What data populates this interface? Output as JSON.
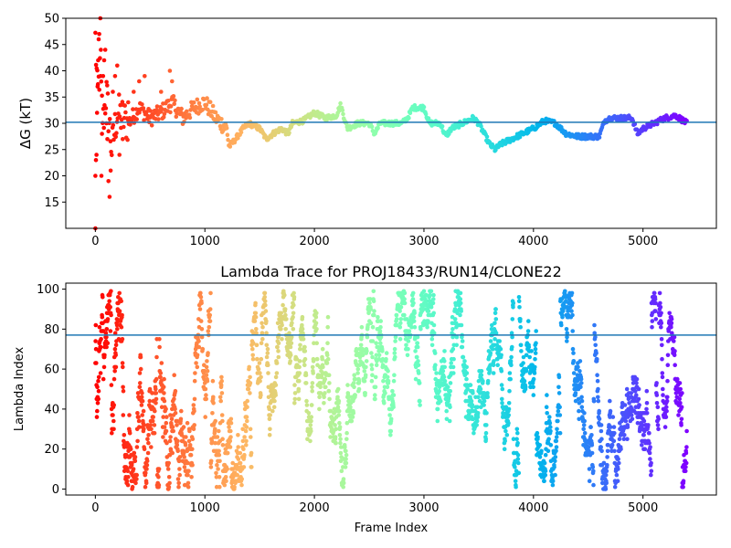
{
  "chart_data": [
    {
      "type": "scatter",
      "title": "",
      "xlabel": "",
      "ylabel": "ΔG (kT)",
      "xlim": [
        -270,
        5670
      ],
      "ylim": [
        10,
        50
      ],
      "xticks": [
        0,
        1000,
        2000,
        3000,
        4000,
        5000
      ],
      "yticks": [
        15,
        20,
        25,
        30,
        35,
        40,
        45,
        50
      ],
      "hline": 30.2,
      "hline_color": "#1f77b4",
      "grid": false,
      "colormap": "rainbow (red at frame 0 to violet at last frame)",
      "n_frames": 5400,
      "trace_anchors": [
        [
          0,
          46
        ],
        [
          20,
          35
        ],
        [
          40,
          40
        ],
        [
          70,
          30
        ],
        [
          100,
          36
        ],
        [
          150,
          25
        ],
        [
          200,
          32
        ],
        [
          300,
          30
        ],
        [
          400,
          33
        ],
        [
          500,
          31
        ],
        [
          600,
          32
        ],
        [
          700,
          34
        ],
        [
          800,
          31
        ],
        [
          900,
          33
        ],
        [
          1000,
          34
        ],
        [
          1100,
          31
        ],
        [
          1200,
          29
        ],
        [
          1220,
          25.5
        ],
        [
          1280,
          27
        ],
        [
          1350,
          29
        ],
        [
          1400,
          30
        ],
        [
          1500,
          29
        ],
        [
          1560,
          27
        ],
        [
          1620,
          28
        ],
        [
          1700,
          29
        ],
        [
          1760,
          28
        ],
        [
          1800,
          30
        ],
        [
          1900,
          30.5
        ],
        [
          2000,
          32
        ],
        [
          2100,
          31
        ],
        [
          2200,
          31.5
        ],
        [
          2240,
          33.5
        ],
        [
          2300,
          29
        ],
        [
          2400,
          30
        ],
        [
          2500,
          30
        ],
        [
          2550,
          28
        ],
        [
          2600,
          30
        ],
        [
          2700,
          30
        ],
        [
          2800,
          30
        ],
        [
          2850,
          31
        ],
        [
          2900,
          33
        ],
        [
          3000,
          33
        ],
        [
          3050,
          30
        ],
        [
          3150,
          30
        ],
        [
          3200,
          27.5
        ],
        [
          3250,
          29
        ],
        [
          3350,
          30
        ],
        [
          3450,
          31
        ],
        [
          3500,
          30
        ],
        [
          3600,
          26
        ],
        [
          3650,
          25
        ],
        [
          3700,
          26
        ],
        [
          3800,
          27
        ],
        [
          3900,
          28
        ],
        [
          4000,
          29
        ],
        [
          4100,
          30.5
        ],
        [
          4200,
          30
        ],
        [
          4300,
          28
        ],
        [
          4400,
          27.5
        ],
        [
          4500,
          27.5
        ],
        [
          4600,
          27.5
        ],
        [
          4650,
          30.5
        ],
        [
          4700,
          31
        ],
        [
          4800,
          31
        ],
        [
          4900,
          31
        ],
        [
          4950,
          28
        ],
        [
          5000,
          29
        ],
        [
          5100,
          30
        ],
        [
          5200,
          31
        ],
        [
          5300,
          31.5
        ],
        [
          5400,
          30
        ]
      ],
      "early_scatter": [
        [
          0,
          20
        ],
        [
          5,
          23
        ],
        [
          10,
          24
        ],
        [
          15,
          32
        ],
        [
          20,
          37
        ],
        [
          25,
          42
        ],
        [
          30,
          46
        ],
        [
          35,
          47
        ],
        [
          45,
          50
        ],
        [
          50,
          44
        ],
        [
          55,
          20
        ],
        [
          60,
          28
        ],
        [
          70,
          39
        ],
        [
          80,
          42
        ],
        [
          90,
          44
        ],
        [
          100,
          30
        ],
        [
          110,
          27
        ],
        [
          120,
          19
        ],
        [
          130,
          16
        ],
        [
          140,
          21
        ],
        [
          160,
          36
        ],
        [
          180,
          39
        ],
        [
          200,
          41
        ],
        [
          220,
          24
        ],
        [
          250,
          27
        ],
        [
          300,
          34
        ],
        [
          350,
          36
        ],
        [
          400,
          38
        ],
        [
          450,
          39
        ],
        [
          600,
          36
        ],
        [
          680,
          40
        ],
        [
          700,
          38
        ],
        [
          0,
          10
        ]
      ]
    },
    {
      "type": "scatter",
      "title": "Lambda Trace for PROJ18433/RUN14/CLONE22",
      "xlabel": "Frame Index",
      "ylabel": "Lambda Index",
      "xlim": [
        -270,
        5670
      ],
      "ylim": [
        -3,
        103
      ],
      "xticks": [
        0,
        1000,
        2000,
        3000,
        4000,
        5000
      ],
      "yticks": [
        0,
        20,
        40,
        60,
        80,
        100
      ],
      "hline": 77,
      "hline_color": "#1f77b4",
      "grid": false,
      "colormap": "rainbow (red at frame 0 to violet at last frame)",
      "n_frames": 5400,
      "value_range": [
        0,
        99
      ]
    }
  ]
}
